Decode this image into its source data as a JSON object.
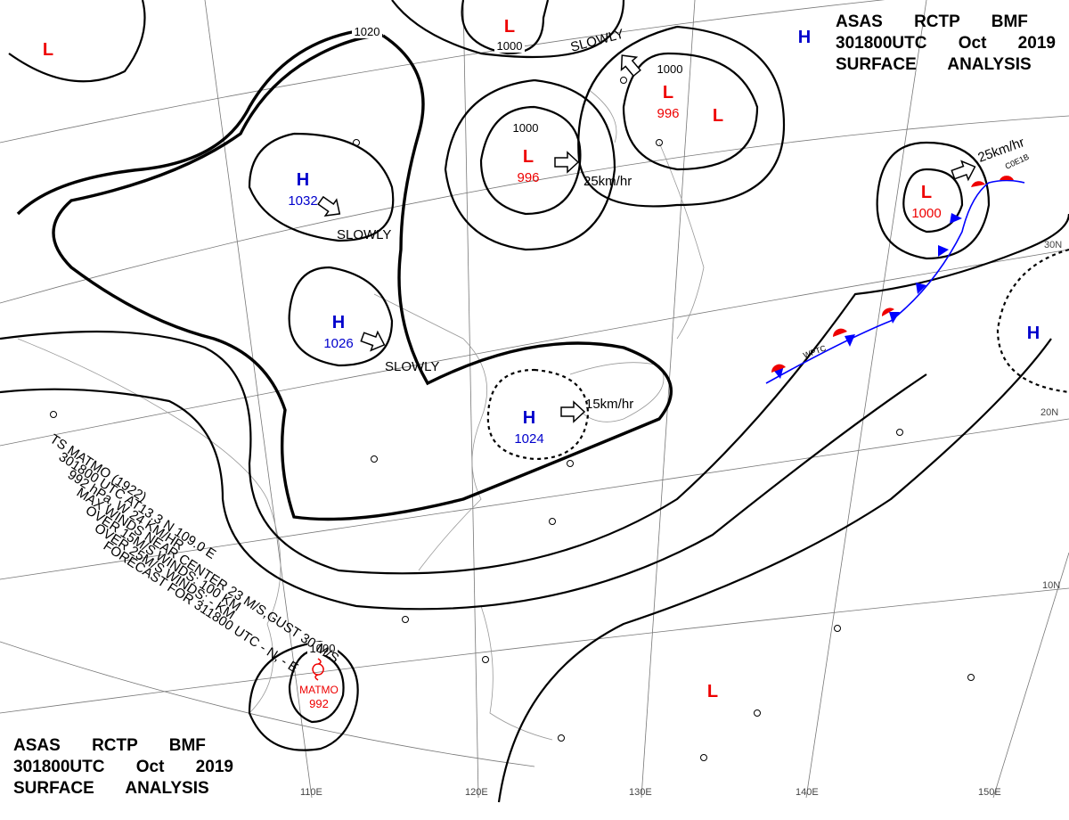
{
  "header": {
    "lines": [
      "ASAS RCTP BMF",
      "301800UTC Oct 2019",
      "SURFACE ANALYSIS"
    ]
  },
  "footer": {
    "lines": [
      "ASAS RCTP BMF",
      "301800UTC Oct 2019",
      "SURFACE ANALYSIS"
    ]
  },
  "systems": [
    {
      "type": "H",
      "pressure": "1032"
    },
    {
      "type": "H",
      "pressure": "1026"
    },
    {
      "type": "H",
      "pressure": "1024"
    },
    {
      "type": "L",
      "pressure": "996"
    },
    {
      "type": "L",
      "pressure": "996"
    },
    {
      "type": "L",
      "pressure": "1000"
    },
    {
      "type": "L"
    },
    {
      "type": "L"
    },
    {
      "type": "L"
    },
    {
      "type": "L"
    },
    {
      "type": "H"
    },
    {
      "type": "H"
    }
  ],
  "isobar_labels": [
    "1020",
    "1000",
    "1000",
    "1000",
    "1000"
  ],
  "motions": [
    "SLOWLY",
    "SLOWLY",
    "SLOWLY",
    "25km/hr",
    "25km/hr",
    "15km/hr"
  ],
  "storm": {
    "lines": [
      "TS MATMO (1922)",
      "301800 UTC AT13.3 N 109.0 E",
      "992 hPa, W 24 KM/HR",
      "MAX WINDS NEAR CENTER 23 M/S,GUST 30 M/S",
      "OVER 15M/S WINDS: 100 KM",
      "OVER 25M/S WINDS: - KM",
      "FORECAST FOR 311800 UTC - N, - E"
    ],
    "name": "MATMO",
    "pressure": "992"
  },
  "front_labels": [
    "WPTC",
    "C0E1B"
  ],
  "lat_labels": [
    "30N",
    "20N",
    "10N"
  ],
  "lon_labels": [
    "110E",
    "120E",
    "130E",
    "140E",
    "150E"
  ]
}
